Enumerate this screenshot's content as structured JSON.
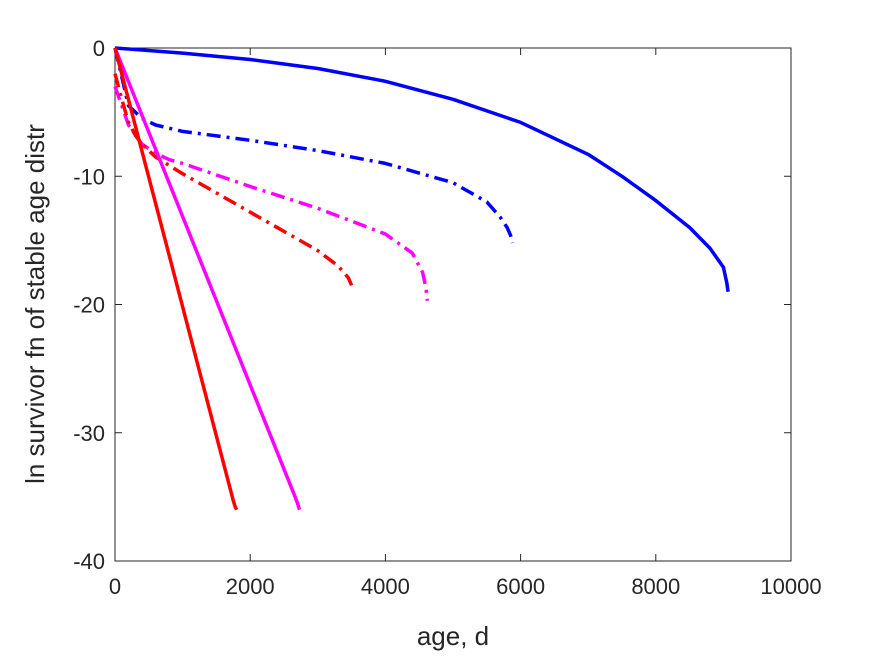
{
  "chart_data": {
    "type": "line",
    "title": "",
    "xlabel": "age, d",
    "ylabel": "ln survivor fn of stable age distr",
    "xlim": [
      0,
      10000
    ],
    "ylim": [
      -40,
      0
    ],
    "xticks": [
      0,
      2000,
      4000,
      6000,
      8000,
      10000
    ],
    "yticks": [
      0,
      -10,
      -20,
      -30,
      -40
    ],
    "xtick_labels": [
      "0",
      "2000",
      "4000",
      "6000",
      "8000",
      "10000"
    ],
    "ytick_labels": [
      "0",
      "-10",
      "-20",
      "-30",
      "-40"
    ],
    "grid": false,
    "legend": "none",
    "series": [
      {
        "color": "#0000ff",
        "style": "solid",
        "x": [
          0,
          1000,
          2000,
          3000,
          4000,
          5000,
          6000,
          7000,
          7500,
          8000,
          8500,
          8800,
          9000,
          9050,
          9070
        ],
        "y": [
          0,
          -0.4,
          -0.9,
          -1.6,
          -2.6,
          -4.0,
          -5.8,
          -8.3,
          -10.0,
          -11.9,
          -14.0,
          -15.6,
          -17.1,
          -18.3,
          -19.0
        ]
      },
      {
        "color": "#0000ff",
        "style": "dashdot",
        "x": [
          0,
          200,
          400,
          600,
          1000,
          2000,
          3000,
          4000,
          5000,
          5500,
          5700,
          5800,
          5850,
          5880
        ],
        "y": [
          0,
          -4.5,
          -5.5,
          -6.0,
          -6.5,
          -7.2,
          -8.0,
          -9.0,
          -10.5,
          -12.0,
          -13.2,
          -14.0,
          -14.6,
          -15.2
        ]
      },
      {
        "color": "#ff00ff",
        "style": "dashdot",
        "x": [
          0,
          100,
          200,
          400,
          600,
          800,
          1000,
          2000,
          3000,
          4000,
          4400,
          4550,
          4600,
          4620
        ],
        "y": [
          -3.0,
          -4.5,
          -6.0,
          -7.5,
          -8.2,
          -8.7,
          -9.0,
          -10.8,
          -12.5,
          -14.5,
          -16.0,
          -17.5,
          -18.7,
          -19.7
        ]
      },
      {
        "color": "#ff0000",
        "style": "dashdot",
        "x": [
          0,
          100,
          200,
          300,
          400,
          600,
          1000,
          1500,
          2000,
          2500,
          3000,
          3300,
          3450,
          3500
        ],
        "y": [
          -2.0,
          -4.0,
          -5.8,
          -6.8,
          -7.5,
          -8.5,
          -9.8,
          -11.3,
          -12.8,
          -14.3,
          -15.8,
          -17.0,
          -17.9,
          -18.5
        ]
      },
      {
        "color": "#ff00ff",
        "style": "solid",
        "x": [
          0,
          2650,
          2700,
          2730
        ],
        "y": [
          0,
          -34.8,
          -35.5,
          -36.0
        ]
      },
      {
        "color": "#ff0000",
        "style": "solid",
        "x": [
          0,
          1750,
          1780,
          1800
        ],
        "y": [
          0,
          -35.3,
          -35.8,
          -36.0
        ]
      }
    ]
  }
}
